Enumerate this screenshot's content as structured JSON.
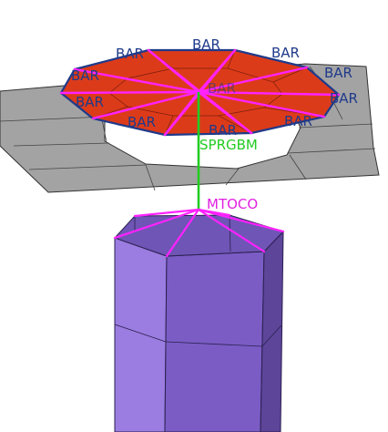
{
  "labels": {
    "bar": [
      "BAR",
      "BAR",
      "BAR",
      "BAR",
      "BAR",
      "BAR",
      "BAR",
      "BAR",
      "BAR",
      "BAR",
      "BAR"
    ],
    "spring": "SPRGBM",
    "mtoco": "MTOCO"
  },
  "colors": {
    "slab_fill": "#a3a3a3",
    "slab_edge": "#333333",
    "disk_fill": "#dc3b1a",
    "disk_edge": "#1f3a8a",
    "spoke_magenta": "#ff22ff",
    "spring_green": "#22cc22",
    "column_front": "#7b5cc4",
    "column_left": "#9b7ce0",
    "column_right": "#5d4599",
    "column_top": "#6f55b5"
  }
}
